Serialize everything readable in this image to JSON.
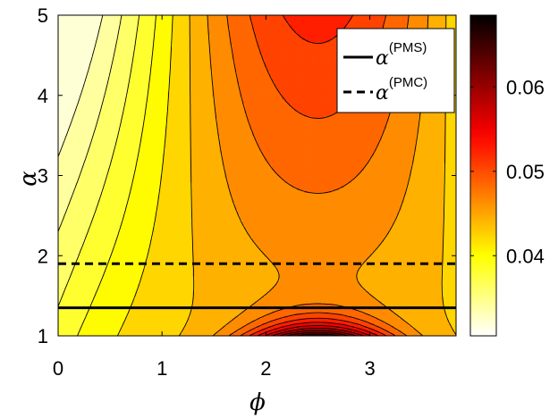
{
  "chart_data": {
    "type": "heatmap",
    "subtype": "filled-contour",
    "xlabel": "ϕ",
    "ylabel": "α",
    "xlim": [
      0,
      3.83
    ],
    "ylim": [
      1,
      5
    ],
    "x_ticks": [
      "0",
      "1",
      "2",
      "3"
    ],
    "y_ticks": [
      "1",
      "2",
      "3",
      "4",
      "5"
    ],
    "colorbar": {
      "colormap": "hot (reversed)",
      "range": [
        0.0305,
        0.0685
      ],
      "ticks": [
        "0.04",
        "0.05",
        "0.06"
      ]
    },
    "field": {
      "description_level": "saddle-shaped surface: low near phi=0, high minimum-ridge at phi~2.5, maximum near alpha=1",
      "min_value": 0.031,
      "max_value": 0.068,
      "contour_levels": 18
    },
    "horizontal_lines": [
      {
        "name": "α",
        "sup": "(PMS)",
        "y": 1.35,
        "style": "solid"
      },
      {
        "name": "α",
        "sup": "(PMC)",
        "y": 1.9,
        "style": "dashed"
      }
    ],
    "legend_position": "top-right",
    "colors": {
      "line": "#000000",
      "background": "#ffffff"
    }
  }
}
